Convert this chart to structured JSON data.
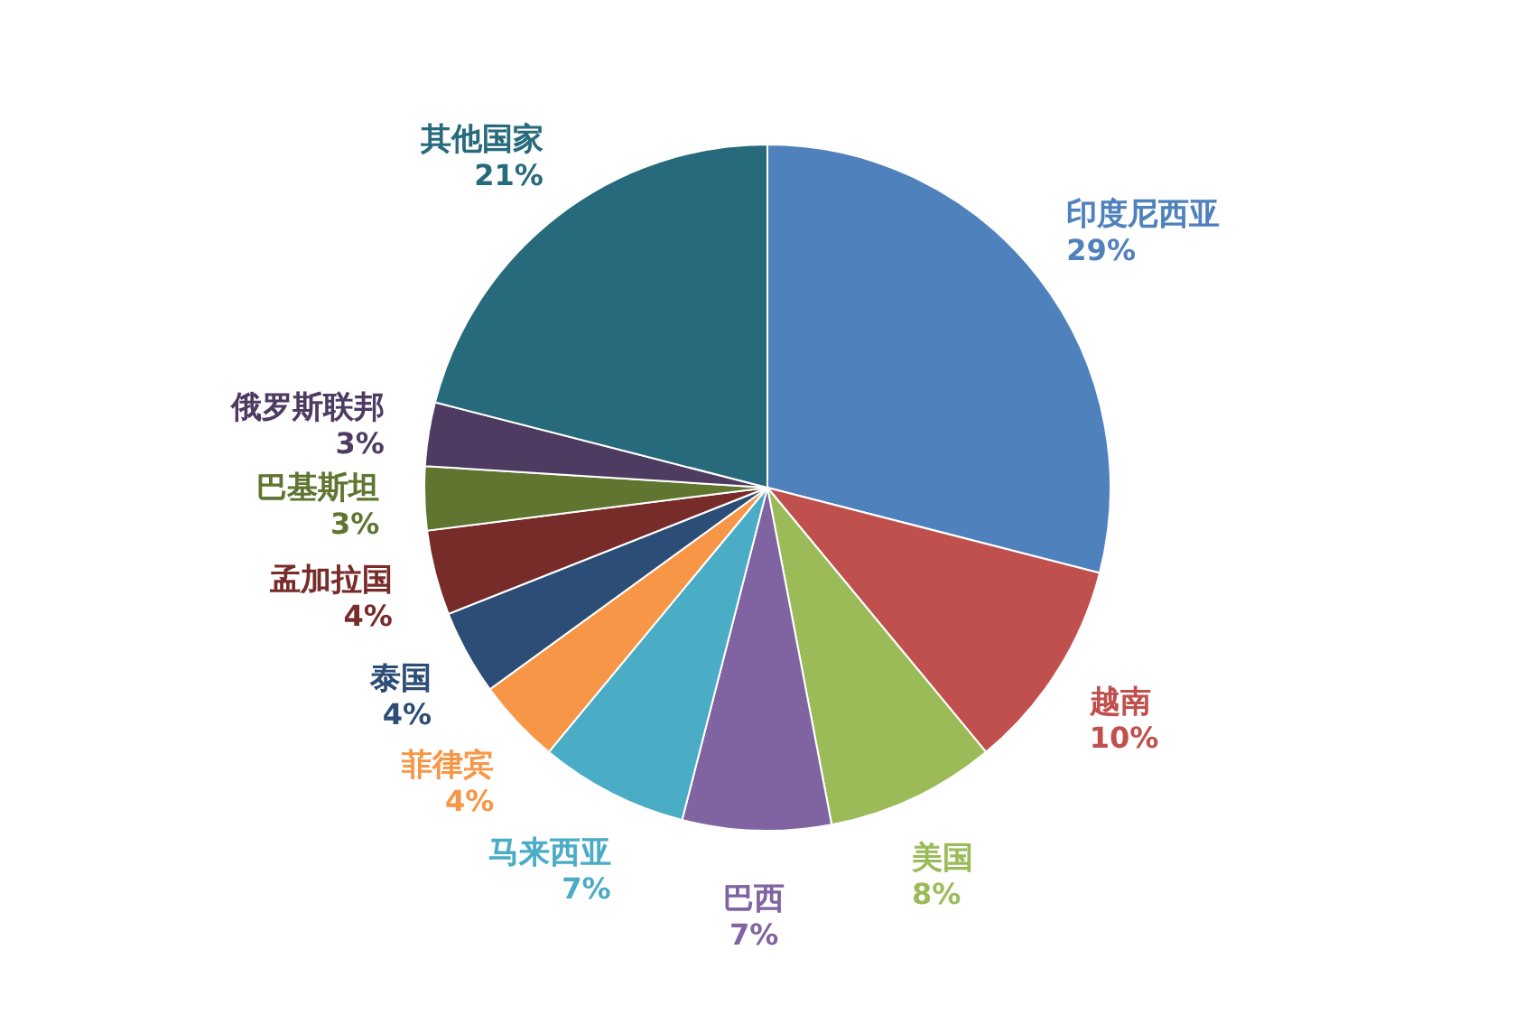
{
  "chart_data": {
    "type": "pie",
    "categories": [
      "印度尼西亚",
      "越南",
      "美国",
      "巴西",
      "马来西亚",
      "菲律宾",
      "泰国",
      "孟加拉国",
      "巴基斯坦",
      "俄罗斯联邦",
      "其他国家"
    ],
    "values": [
      29,
      10,
      8,
      7,
      7,
      4,
      4,
      4,
      3,
      3,
      21
    ],
    "value_labels": [
      "29%",
      "10%",
      "8%",
      "7%",
      "7%",
      "4%",
      "4%",
      "4%",
      "3%",
      "3%",
      "21%"
    ],
    "colors": [
      "#4f81bd",
      "#c0504d",
      "#9bbb59",
      "#8064a2",
      "#4bacc6",
      "#f79646",
      "#2c4d75",
      "#772c2a",
      "#5f7530",
      "#4d3b62",
      "#276a7c"
    ]
  }
}
